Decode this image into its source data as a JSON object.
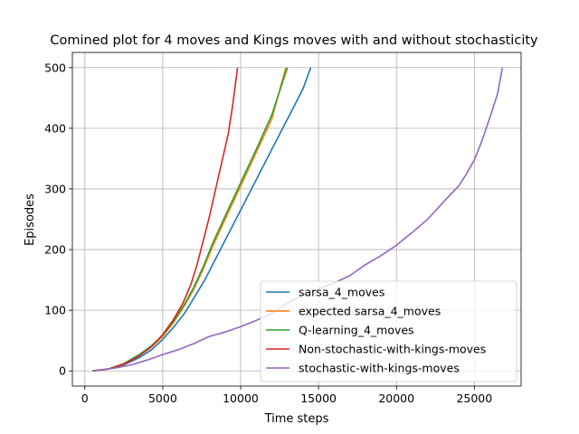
{
  "chart_data": {
    "type": "line",
    "title": "Comined plot for 4 moves and Kings moves with and without stochasticity",
    "xlabel": "Time steps",
    "ylabel": "Episodes",
    "xlim": [
      -800,
      28000
    ],
    "ylim": [
      -25,
      525
    ],
    "xticks": [
      0,
      5000,
      10000,
      15000,
      20000,
      25000
    ],
    "yticks": [
      0,
      100,
      200,
      300,
      400,
      500
    ],
    "grid": true,
    "legend_position": "lower-right",
    "series": [
      {
        "name": "sarsa_4_moves",
        "color": "#1f77b4",
        "points": [
          [
            500,
            0
          ],
          [
            1500,
            3
          ],
          [
            2500,
            10
          ],
          [
            3500,
            22
          ],
          [
            4300,
            35
          ],
          [
            5000,
            52
          ],
          [
            5700,
            72
          ],
          [
            6400,
            95
          ],
          [
            7000,
            120
          ],
          [
            7700,
            150
          ],
          [
            8400,
            185
          ],
          [
            9200,
            225
          ],
          [
            10000,
            265
          ],
          [
            11000,
            315
          ],
          [
            12000,
            365
          ],
          [
            13000,
            415
          ],
          [
            14000,
            465
          ],
          [
            14500,
            500
          ]
        ]
      },
      {
        "name": "expected sarsa_4_moves",
        "color": "#ff7f0e",
        "points": [
          [
            500,
            0
          ],
          [
            1500,
            3
          ],
          [
            2500,
            12
          ],
          [
            3500,
            26
          ],
          [
            4300,
            40
          ],
          [
            5000,
            57
          ],
          [
            5700,
            80
          ],
          [
            6400,
            108
          ],
          [
            7000,
            135
          ],
          [
            7600,
            168
          ],
          [
            8200,
            205
          ],
          [
            9000,
            250
          ],
          [
            10000,
            305
          ],
          [
            11000,
            360
          ],
          [
            12000,
            415
          ],
          [
            12900,
            500
          ]
        ]
      },
      {
        "name": "Q-learning_4_moves",
        "color": "#2ca02c",
        "points": [
          [
            500,
            0
          ],
          [
            1500,
            3
          ],
          [
            2500,
            12
          ],
          [
            3500,
            27
          ],
          [
            4300,
            42
          ],
          [
            5000,
            59
          ],
          [
            5700,
            82
          ],
          [
            6400,
            110
          ],
          [
            7000,
            138
          ],
          [
            7600,
            172
          ],
          [
            8200,
            210
          ],
          [
            9000,
            255
          ],
          [
            10000,
            310
          ],
          [
            11000,
            365
          ],
          [
            12000,
            422
          ],
          [
            13000,
            500
          ]
        ]
      },
      {
        "name": "Non-stochastic-with-kings-moves",
        "color": "#d62728",
        "points": [
          [
            500,
            0
          ],
          [
            1500,
            3
          ],
          [
            2500,
            11
          ],
          [
            3500,
            25
          ],
          [
            4300,
            40
          ],
          [
            5000,
            60
          ],
          [
            5700,
            85
          ],
          [
            6300,
            112
          ],
          [
            6800,
            142
          ],
          [
            7200,
            175
          ],
          [
            7600,
            215
          ],
          [
            8000,
            255
          ],
          [
            8400,
            300
          ],
          [
            8800,
            345
          ],
          [
            9200,
            390
          ],
          [
            9500,
            440
          ],
          [
            9800,
            500
          ]
        ]
      },
      {
        "name": "stochastic-with-kings-moves",
        "color": "#9467bd",
        "points": [
          [
            500,
            0
          ],
          [
            2000,
            5
          ],
          [
            3000,
            10
          ],
          [
            4000,
            18
          ],
          [
            5000,
            27
          ],
          [
            6000,
            35
          ],
          [
            7000,
            45
          ],
          [
            8000,
            57
          ],
          [
            9000,
            64
          ],
          [
            10000,
            73
          ],
          [
            11000,
            83
          ],
          [
            12000,
            95
          ],
          [
            13000,
            112
          ],
          [
            14000,
            125
          ],
          [
            15000,
            135
          ],
          [
            16000,
            145
          ],
          [
            17000,
            157
          ],
          [
            18000,
            175
          ],
          [
            19000,
            190
          ],
          [
            20000,
            207
          ],
          [
            21000,
            228
          ],
          [
            22000,
            250
          ],
          [
            23000,
            278
          ],
          [
            24000,
            305
          ],
          [
            24500,
            325
          ],
          [
            25000,
            348
          ],
          [
            25500,
            380
          ],
          [
            26000,
            418
          ],
          [
            26500,
            458
          ],
          [
            26800,
            500
          ]
        ]
      }
    ]
  }
}
